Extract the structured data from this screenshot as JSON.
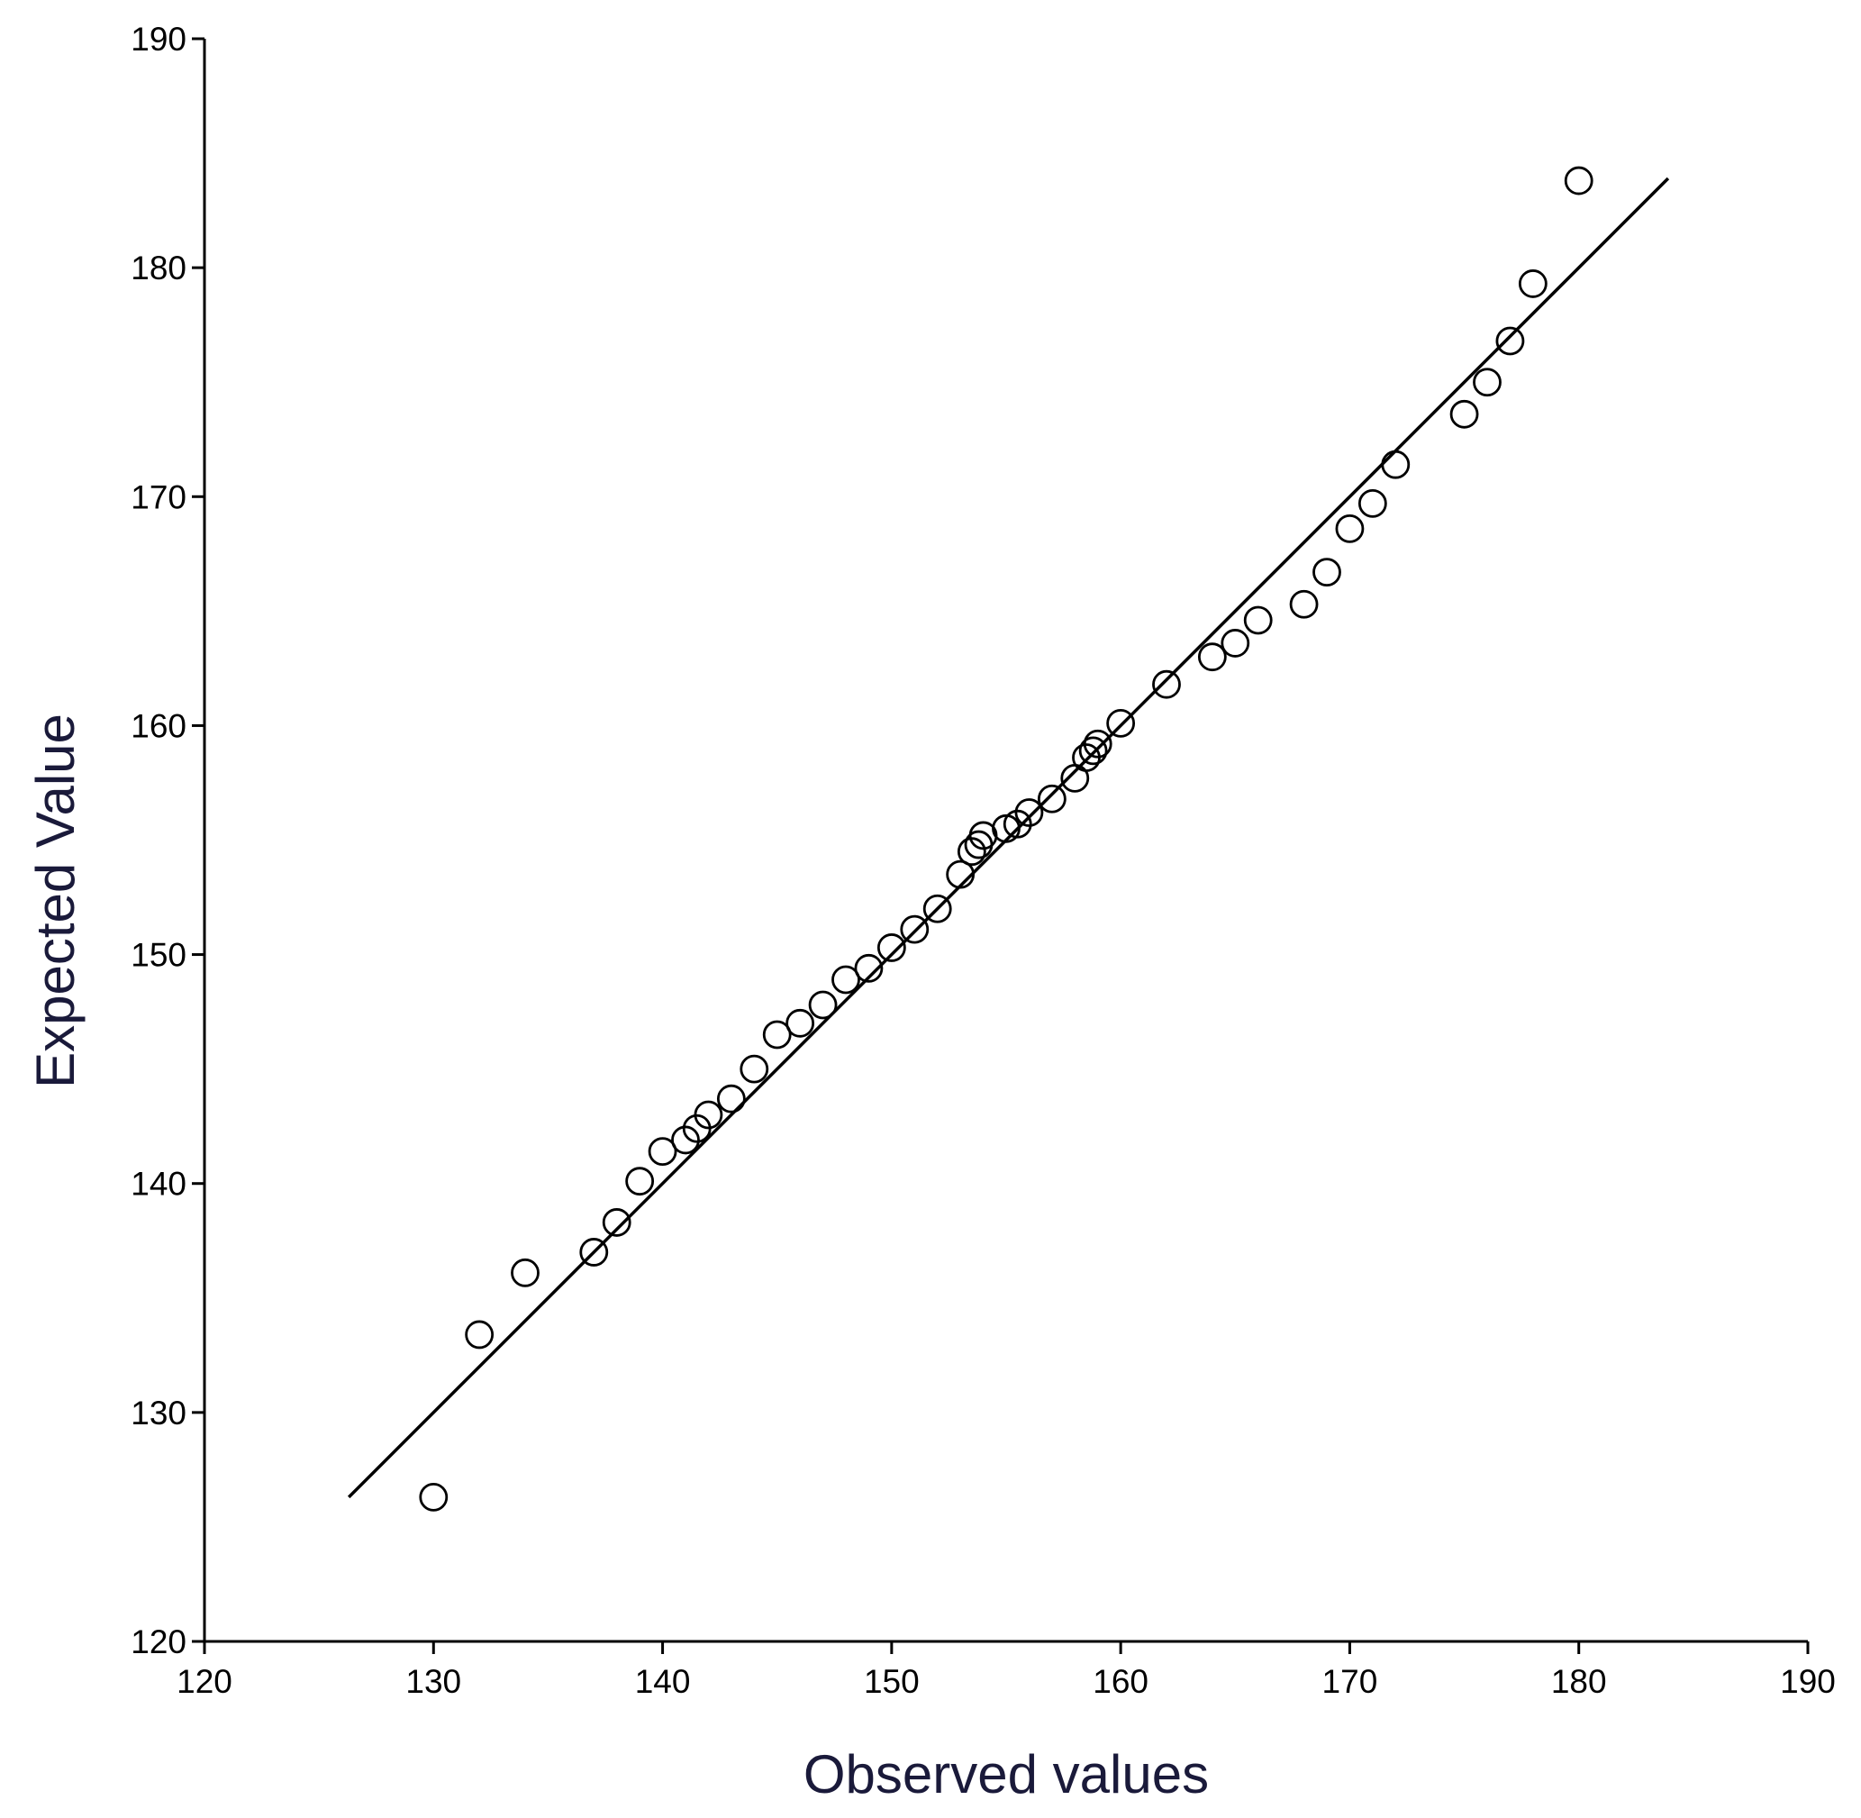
{
  "chart_data": {
    "type": "scatter",
    "x_label": "Observed values",
    "y_label": "Expected Value",
    "x": [
      130,
      132,
      134,
      137,
      138,
      139,
      140,
      141,
      141.5,
      142,
      143,
      144,
      145,
      146,
      147,
      148,
      149,
      150,
      151,
      152,
      153,
      153.5,
      153.8,
      154,
      155,
      155.5,
      156,
      157,
      158,
      158.5,
      158.8,
      159,
      160,
      162,
      164,
      165,
      166,
      168,
      169,
      170,
      171,
      172,
      175,
      176,
      177,
      178,
      180
    ],
    "values": [
      126.3,
      133.4,
      136.1,
      137.0,
      138.3,
      140.1,
      141.4,
      141.9,
      142.4,
      143.0,
      143.7,
      145.0,
      146.5,
      147.0,
      147.8,
      148.9,
      149.4,
      150.3,
      151.1,
      152.0,
      153.5,
      154.5,
      154.8,
      155.2,
      155.5,
      155.7,
      156.2,
      156.8,
      157.7,
      158.6,
      158.9,
      159.2,
      160.1,
      161.8,
      163.0,
      163.6,
      164.6,
      165.3,
      166.7,
      168.6,
      169.7,
      171.4,
      173.6,
      175.0,
      176.8,
      179.3,
      183.8
    ],
    "color": "#000000",
    "reference_line": {
      "x": [
        126.3,
        183.9
      ],
      "y": [
        126.3,
        183.9
      ],
      "color": "#000000"
    },
    "xlim": [
      120,
      190
    ],
    "ylim": [
      120,
      190
    ],
    "xticks": [
      120,
      130,
      140,
      150,
      160,
      170,
      180,
      190
    ],
    "yticks": [
      120,
      130,
      140,
      150,
      160,
      170,
      180,
      190
    ],
    "grid": false
  }
}
